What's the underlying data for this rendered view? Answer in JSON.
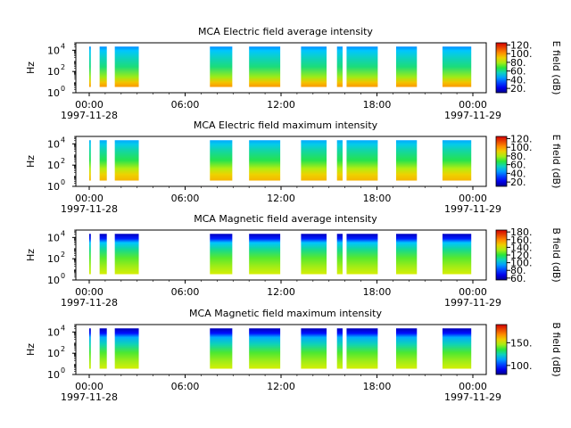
{
  "chart_data": [
    {
      "type": "heatmap",
      "title": "MCA  Electric field average intensity",
      "ylabel": "Hz",
      "yticks": [
        {
          "exp": "0",
          "v": 1
        },
        {
          "exp": "2",
          "v": 100
        },
        {
          "exp": "4",
          "v": 10000
        }
      ],
      "xticks": [
        {
          "t": 0,
          "label": "00:00",
          "date": "1997-11-28"
        },
        {
          "t": 6,
          "label": "06:00"
        },
        {
          "t": 12,
          "label": "12:00"
        },
        {
          "t": 18,
          "label": "18:00"
        },
        {
          "t": 24,
          "label": "00:00",
          "date": "1997-11-29"
        }
      ],
      "colorbar_label": "E field (dB)",
      "colorbar_ticks": [
        {
          "v": 20,
          "label": "20."
        },
        {
          "v": 40,
          "label": "40."
        },
        {
          "v": 60,
          "label": "60."
        },
        {
          "v": 80,
          "label": "80."
        },
        {
          "v": 100,
          "label": "100."
        },
        {
          "v": 120,
          "label": "120."
        }
      ],
      "clim": [
        10,
        125
      ],
      "profile": [
        {
          "f": 0.0,
          "v": 100
        },
        {
          "f": 0.12,
          "v": 92
        },
        {
          "f": 0.25,
          "v": 78
        },
        {
          "f": 0.5,
          "v": 62
        },
        {
          "f": 0.75,
          "v": 55
        },
        {
          "f": 0.9,
          "v": 50
        },
        {
          "f": 1.0,
          "v": 42
        }
      ]
    },
    {
      "type": "heatmap",
      "title": "MCA  Electric field maximum intensity",
      "ylabel": "Hz",
      "yticks": [
        {
          "exp": "0",
          "v": 1
        },
        {
          "exp": "2",
          "v": 100
        },
        {
          "exp": "4",
          "v": 10000
        }
      ],
      "xticks": [
        {
          "t": 0,
          "label": "00:00",
          "date": "1997-11-28"
        },
        {
          "t": 6,
          "label": "06:00"
        },
        {
          "t": 12,
          "label": "12:00"
        },
        {
          "t": 18,
          "label": "18:00"
        },
        {
          "t": 24,
          "label": "00:00",
          "date": "1997-11-29"
        }
      ],
      "colorbar_label": "E field (dB)",
      "colorbar_ticks": [
        {
          "v": 20,
          "label": "20."
        },
        {
          "v": 40,
          "label": "40."
        },
        {
          "v": 60,
          "label": "60."
        },
        {
          "v": 80,
          "label": "80."
        },
        {
          "v": 100,
          "label": "100."
        },
        {
          "v": 120,
          "label": "120."
        }
      ],
      "clim": [
        10,
        125
      ],
      "profile": [
        {
          "f": 0.0,
          "v": 95
        },
        {
          "f": 0.15,
          "v": 90
        },
        {
          "f": 0.3,
          "v": 80
        },
        {
          "f": 0.5,
          "v": 66
        },
        {
          "f": 0.75,
          "v": 58
        },
        {
          "f": 0.9,
          "v": 52
        },
        {
          "f": 1.0,
          "v": 46
        }
      ]
    },
    {
      "type": "heatmap",
      "title": "MCA  Magnetic field average intensity",
      "ylabel": "Hz",
      "yticks": [
        {
          "exp": "0",
          "v": 1
        },
        {
          "exp": "2",
          "v": 100
        },
        {
          "exp": "4",
          "v": 10000
        }
      ],
      "xticks": [
        {
          "t": 0,
          "label": "00:00",
          "date": "1997-11-28"
        },
        {
          "t": 6,
          "label": "06:00"
        },
        {
          "t": 12,
          "label": "12:00"
        },
        {
          "t": 18,
          "label": "18:00"
        },
        {
          "t": 24,
          "label": "00:00",
          "date": "1997-11-29"
        }
      ],
      "colorbar_label": "B field (dB)",
      "colorbar_ticks": [
        {
          "v": 60,
          "label": "60."
        },
        {
          "v": 80,
          "label": "80."
        },
        {
          "v": 100,
          "label": "100."
        },
        {
          "v": 120,
          "label": "120."
        },
        {
          "v": 140,
          "label": "140."
        },
        {
          "v": 160,
          "label": "160."
        },
        {
          "v": 180,
          "label": "180."
        }
      ],
      "clim": [
        55,
        185
      ],
      "profile": [
        {
          "f": 0.0,
          "v": 138
        },
        {
          "f": 0.2,
          "v": 132
        },
        {
          "f": 0.4,
          "v": 125
        },
        {
          "f": 0.6,
          "v": 112
        },
        {
          "f": 0.78,
          "v": 100
        },
        {
          "f": 0.88,
          "v": 75
        },
        {
          "f": 1.0,
          "v": 62
        }
      ]
    },
    {
      "type": "heatmap",
      "title": "MCA  Magnetic field maximum intensity",
      "ylabel": "Hz",
      "yticks": [
        {
          "exp": "0",
          "v": 1
        },
        {
          "exp": "2",
          "v": 100
        },
        {
          "exp": "4",
          "v": 10000
        }
      ],
      "xticks": [
        {
          "t": 0,
          "label": "00:00",
          "date": "1997-11-28"
        },
        {
          "t": 6,
          "label": "06:00"
        },
        {
          "t": 12,
          "label": "12:00"
        },
        {
          "t": 18,
          "label": "18:00"
        },
        {
          "t": 24,
          "label": "00:00",
          "date": "1997-11-29"
        }
      ],
      "colorbar_label": "B field (dB)",
      "colorbar_ticks": [
        {
          "v": 100,
          "label": "100."
        },
        {
          "v": 150,
          "label": "150."
        }
      ],
      "clim": [
        80,
        190
      ],
      "profile": [
        {
          "f": 0.0,
          "v": 150
        },
        {
          "f": 0.2,
          "v": 145
        },
        {
          "f": 0.4,
          "v": 138
        },
        {
          "f": 0.6,
          "v": 125
        },
        {
          "f": 0.78,
          "v": 115
        },
        {
          "f": 0.88,
          "v": 95
        },
        {
          "f": 1.0,
          "v": 85
        }
      ]
    }
  ],
  "data_intervals_hours": [
    [
      0.0,
      0.1
    ],
    [
      0.65,
      1.1
    ],
    [
      1.6,
      3.1
    ],
    [
      7.55,
      8.95
    ],
    [
      10.0,
      11.95
    ],
    [
      13.25,
      14.85
    ],
    [
      15.5,
      15.85
    ],
    [
      16.1,
      18.05
    ],
    [
      19.2,
      20.5
    ],
    [
      22.1,
      23.9
    ]
  ]
}
